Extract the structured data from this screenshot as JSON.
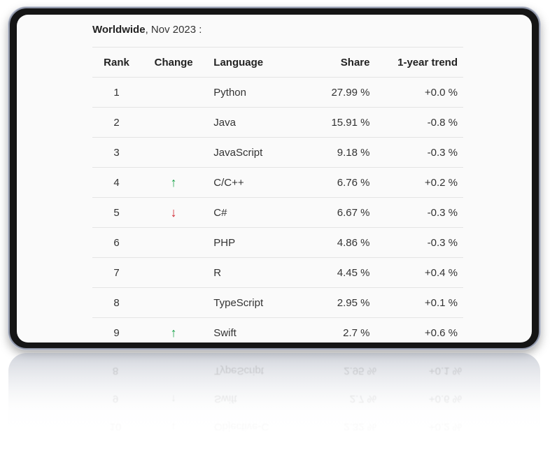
{
  "heading": {
    "region": "Worldwide",
    "date_suffix": ", Nov 2023 :"
  },
  "table": {
    "headers": {
      "rank": "Rank",
      "change": "Change",
      "language": "Language",
      "share": "Share",
      "trend": "1-year trend"
    },
    "rows": [
      {
        "rank": "1",
        "change": "",
        "language": "Python",
        "share": "27.99 %",
        "trend": "+0.0 %"
      },
      {
        "rank": "2",
        "change": "",
        "language": "Java",
        "share": "15.91 %",
        "trend": "-0.8 %"
      },
      {
        "rank": "3",
        "change": "",
        "language": "JavaScript",
        "share": "9.18 %",
        "trend": "-0.3 %"
      },
      {
        "rank": "4",
        "change": "up",
        "language": "C/C++",
        "share": "6.76 %",
        "trend": "+0.2 %"
      },
      {
        "rank": "5",
        "change": "down",
        "language": "C#",
        "share": "6.67 %",
        "trend": "-0.3 %"
      },
      {
        "rank": "6",
        "change": "",
        "language": "PHP",
        "share": "4.86 %",
        "trend": "-0.3 %"
      },
      {
        "rank": "7",
        "change": "",
        "language": "R",
        "share": "4.45 %",
        "trend": "+0.4 %"
      },
      {
        "rank": "8",
        "change": "",
        "language": "TypeScript",
        "share": "2.95 %",
        "trend": "+0.1 %"
      },
      {
        "rank": "9",
        "change": "up",
        "language": "Swift",
        "share": "2.7 %",
        "trend": "+0.6 %"
      },
      {
        "rank": "10",
        "change": "down",
        "language": "Objective-C",
        "share": "2.32 %",
        "trend": "+0.2 %"
      }
    ]
  },
  "icons": {
    "up": "↑",
    "down": "↓"
  },
  "colors": {
    "up": "#1aa34a",
    "down": "#d0202a",
    "frame": "#151515"
  }
}
